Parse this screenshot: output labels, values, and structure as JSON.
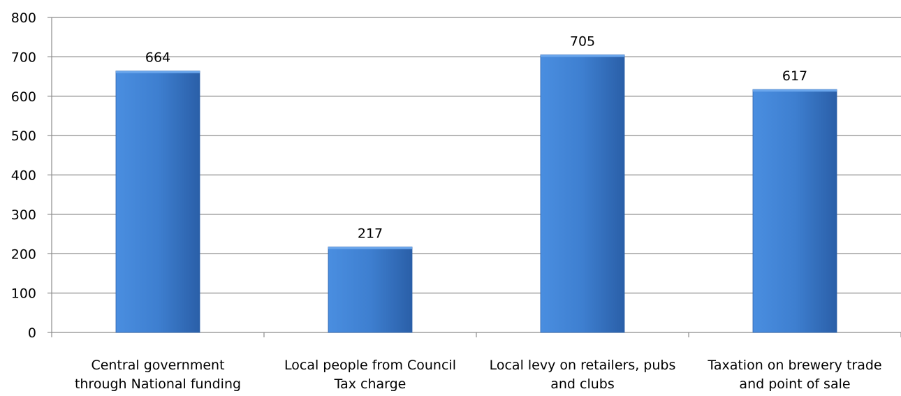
{
  "chart_data": {
    "type": "bar",
    "title": "",
    "xlabel": "",
    "ylabel": "",
    "ylim": [
      0,
      800
    ],
    "y_ticks": [
      "0",
      "100",
      "200",
      "300",
      "400",
      "500",
      "600",
      "700",
      "800"
    ],
    "grid": true,
    "legend": "none",
    "categories": [
      [
        "Central government",
        "through National funding"
      ],
      [
        "Local people from Council",
        "Tax charge"
      ],
      [
        "Local levy on retailers, pubs",
        "and clubs"
      ],
      [
        "Taxation on brewery trade",
        "and point of sale"
      ]
    ],
    "values": [
      664,
      217,
      705,
      617
    ],
    "data_labels": [
      "664",
      "217",
      "705",
      "617"
    ],
    "colors": {
      "bar_light": "#4a8ee0",
      "bar_mid": "#3e7fd0",
      "bar_dark": "#2a5fa8",
      "grid": "#8c8c8c",
      "axis": "#8c8c8c"
    }
  }
}
